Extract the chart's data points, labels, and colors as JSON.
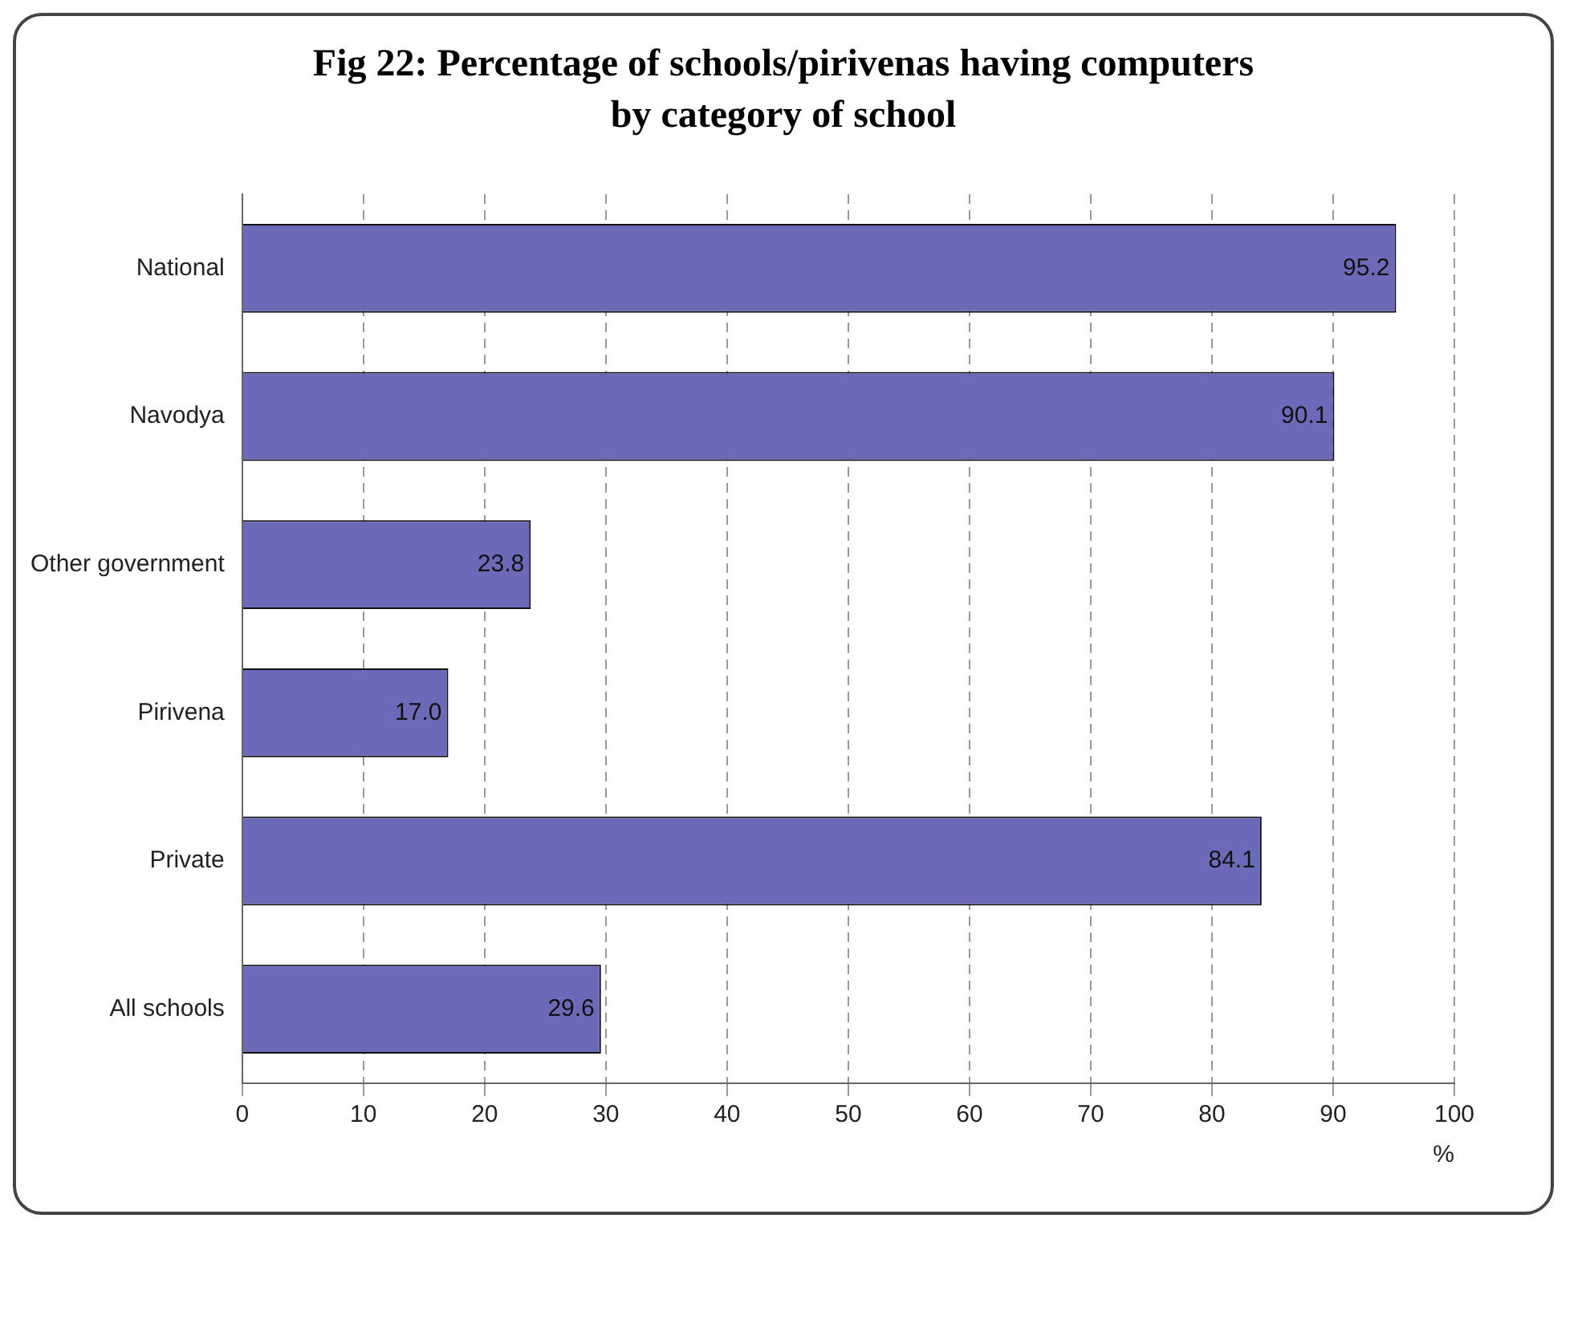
{
  "chart_data": {
    "type": "bar",
    "orientation": "horizontal",
    "title": "Fig 22: Percentage of schools/pirivenas having computers by category of school",
    "xlabel": "%",
    "categories": [
      "National",
      "Navodya",
      "Other government",
      "Pirivena",
      "Private",
      "All schools"
    ],
    "values": [
      95.2,
      90.1,
      23.8,
      17.0,
      84.1,
      29.6
    ],
    "value_labels": [
      "95.2",
      "90.1",
      "23.8",
      "17.0",
      "84.1",
      "29.6"
    ],
    "color": "#6a6ab8",
    "xlim": [
      0,
      100
    ],
    "xticks": [
      0,
      10,
      20,
      30,
      40,
      50,
      60,
      70,
      80,
      90,
      100
    ],
    "grid": "x",
    "line_style": "dashed"
  }
}
